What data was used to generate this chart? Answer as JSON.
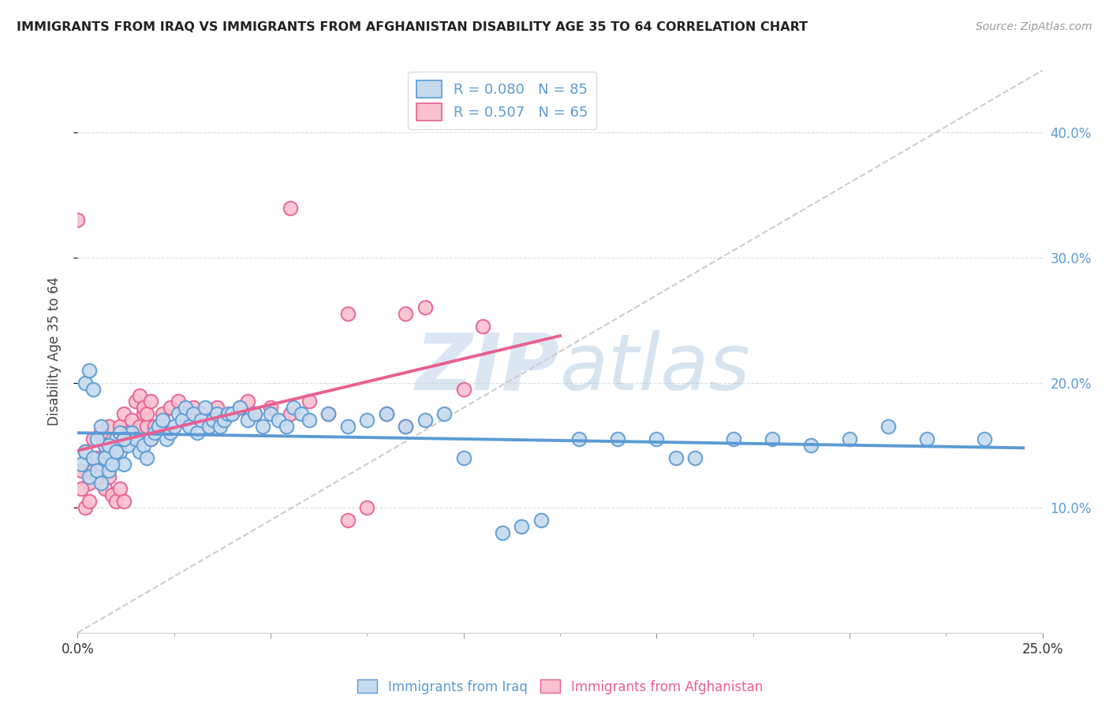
{
  "title": "IMMIGRANTS FROM IRAQ VS IMMIGRANTS FROM AFGHANISTAN DISABILITY AGE 35 TO 64 CORRELATION CHART",
  "source": "Source: ZipAtlas.com",
  "ylabel": "Disability Age 35 to 64",
  "xlim": [
    0.0,
    0.25
  ],
  "ylim": [
    0.0,
    0.45
  ],
  "iraq_R": 0.08,
  "iraq_N": 85,
  "afghanistan_R": 0.507,
  "afghanistan_N": 65,
  "iraq_color": "#5b9bd5",
  "iraq_fill": "#c6dbef",
  "afghanistan_color": "#e86090",
  "afghanistan_fill": "#f9c0d0",
  "diagonal_color": "#cccccc",
  "watermark_color": "#b8cfe8",
  "background_color": "#ffffff",
  "grid_color": "#e0e0e0",
  "iraq_scatter": [
    [
      0.001,
      0.135
    ],
    [
      0.002,
      0.145
    ],
    [
      0.003,
      0.125
    ],
    [
      0.004,
      0.14
    ],
    [
      0.005,
      0.13
    ],
    [
      0.006,
      0.12
    ],
    [
      0.007,
      0.15
    ],
    [
      0.008,
      0.13
    ],
    [
      0.009,
      0.14
    ],
    [
      0.01,
      0.155
    ],
    [
      0.011,
      0.145
    ],
    [
      0.012,
      0.135
    ],
    [
      0.013,
      0.15
    ],
    [
      0.014,
      0.16
    ],
    [
      0.015,
      0.155
    ],
    [
      0.016,
      0.145
    ],
    [
      0.017,
      0.15
    ],
    [
      0.018,
      0.14
    ],
    [
      0.019,
      0.155
    ],
    [
      0.02,
      0.16
    ],
    [
      0.021,
      0.165
    ],
    [
      0.022,
      0.17
    ],
    [
      0.023,
      0.155
    ],
    [
      0.024,
      0.16
    ],
    [
      0.005,
      0.155
    ],
    [
      0.006,
      0.165
    ],
    [
      0.007,
      0.14
    ],
    [
      0.008,
      0.15
    ],
    [
      0.009,
      0.135
    ],
    [
      0.01,
      0.145
    ],
    [
      0.011,
      0.16
    ],
    [
      0.012,
      0.155
    ],
    [
      0.002,
      0.2
    ],
    [
      0.003,
      0.21
    ],
    [
      0.004,
      0.195
    ],
    [
      0.025,
      0.165
    ],
    [
      0.026,
      0.175
    ],
    [
      0.027,
      0.17
    ],
    [
      0.028,
      0.18
    ],
    [
      0.029,
      0.165
    ],
    [
      0.03,
      0.175
    ],
    [
      0.031,
      0.16
    ],
    [
      0.032,
      0.17
    ],
    [
      0.033,
      0.18
    ],
    [
      0.034,
      0.165
    ],
    [
      0.035,
      0.17
    ],
    [
      0.036,
      0.175
    ],
    [
      0.037,
      0.165
    ],
    [
      0.038,
      0.17
    ],
    [
      0.039,
      0.175
    ],
    [
      0.04,
      0.175
    ],
    [
      0.042,
      0.18
    ],
    [
      0.044,
      0.17
    ],
    [
      0.046,
      0.175
    ],
    [
      0.048,
      0.165
    ],
    [
      0.05,
      0.175
    ],
    [
      0.052,
      0.17
    ],
    [
      0.054,
      0.165
    ],
    [
      0.056,
      0.18
    ],
    [
      0.058,
      0.175
    ],
    [
      0.06,
      0.17
    ],
    [
      0.065,
      0.175
    ],
    [
      0.07,
      0.165
    ],
    [
      0.075,
      0.17
    ],
    [
      0.08,
      0.175
    ],
    [
      0.085,
      0.165
    ],
    [
      0.09,
      0.17
    ],
    [
      0.095,
      0.175
    ],
    [
      0.1,
      0.14
    ],
    [
      0.11,
      0.08
    ],
    [
      0.115,
      0.085
    ],
    [
      0.12,
      0.09
    ],
    [
      0.13,
      0.155
    ],
    [
      0.14,
      0.155
    ],
    [
      0.15,
      0.155
    ],
    [
      0.155,
      0.14
    ],
    [
      0.16,
      0.14
    ],
    [
      0.17,
      0.155
    ],
    [
      0.18,
      0.155
    ],
    [
      0.19,
      0.15
    ],
    [
      0.2,
      0.155
    ],
    [
      0.21,
      0.165
    ],
    [
      0.22,
      0.155
    ],
    [
      0.235,
      0.155
    ]
  ],
  "afghanistan_scatter": [
    [
      0.001,
      0.13
    ],
    [
      0.002,
      0.145
    ],
    [
      0.003,
      0.12
    ],
    [
      0.004,
      0.155
    ],
    [
      0.005,
      0.14
    ],
    [
      0.006,
      0.16
    ],
    [
      0.007,
      0.15
    ],
    [
      0.008,
      0.165
    ],
    [
      0.009,
      0.14
    ],
    [
      0.01,
      0.155
    ],
    [
      0.011,
      0.165
    ],
    [
      0.012,
      0.175
    ],
    [
      0.013,
      0.16
    ],
    [
      0.014,
      0.17
    ],
    [
      0.015,
      0.155
    ],
    [
      0.016,
      0.165
    ],
    [
      0.017,
      0.175
    ],
    [
      0.018,
      0.165
    ],
    [
      0.019,
      0.155
    ],
    [
      0.004,
      0.13
    ],
    [
      0.005,
      0.125
    ],
    [
      0.006,
      0.135
    ],
    [
      0.007,
      0.115
    ],
    [
      0.008,
      0.125
    ],
    [
      0.009,
      0.11
    ],
    [
      0.01,
      0.105
    ],
    [
      0.011,
      0.115
    ],
    [
      0.012,
      0.105
    ],
    [
      0.002,
      0.1
    ],
    [
      0.003,
      0.105
    ],
    [
      0.001,
      0.115
    ],
    [
      0.02,
      0.165
    ],
    [
      0.022,
      0.175
    ],
    [
      0.024,
      0.18
    ],
    [
      0.026,
      0.185
    ],
    [
      0.028,
      0.175
    ],
    [
      0.03,
      0.18
    ],
    [
      0.032,
      0.175
    ],
    [
      0.034,
      0.165
    ],
    [
      0.036,
      0.18
    ],
    [
      0.015,
      0.185
    ],
    [
      0.016,
      0.19
    ],
    [
      0.017,
      0.18
    ],
    [
      0.018,
      0.175
    ],
    [
      0.019,
      0.185
    ],
    [
      0.04,
      0.175
    ],
    [
      0.042,
      0.18
    ],
    [
      0.044,
      0.185
    ],
    [
      0.046,
      0.175
    ],
    [
      0.05,
      0.18
    ],
    [
      0.055,
      0.175
    ],
    [
      0.06,
      0.185
    ],
    [
      0.065,
      0.175
    ],
    [
      0.07,
      0.09
    ],
    [
      0.075,
      0.1
    ],
    [
      0.08,
      0.175
    ],
    [
      0.085,
      0.255
    ],
    [
      0.09,
      0.26
    ],
    [
      0.1,
      0.195
    ],
    [
      0.105,
      0.245
    ],
    [
      0.055,
      0.34
    ],
    [
      0.07,
      0.255
    ],
    [
      0.0,
      0.33
    ],
    [
      0.085,
      0.165
    ]
  ]
}
